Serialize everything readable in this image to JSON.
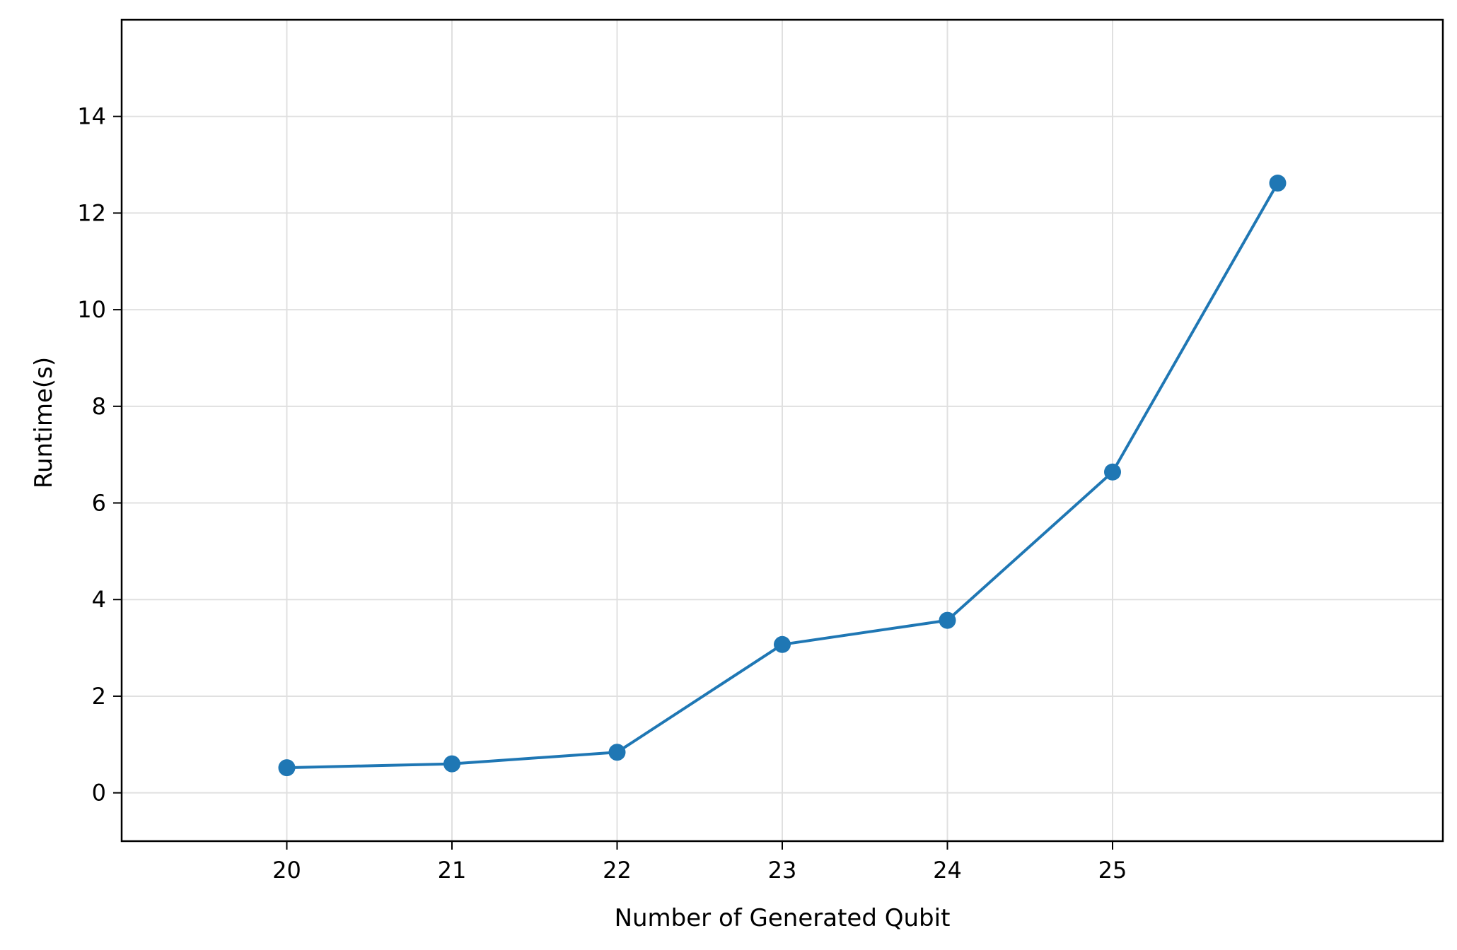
{
  "chart_data": {
    "type": "line",
    "title": "",
    "xlabel": "Number of Generated Qubit",
    "ylabel": "Runtime(s)",
    "x": [
      20,
      21,
      22,
      23,
      24,
      25,
      26
    ],
    "series": [
      {
        "values": [
          0.52,
          0.6,
          0.84,
          3.07,
          3.57,
          6.64,
          12.62
        ]
      }
    ],
    "xticks": [
      20,
      21,
      22,
      23,
      24,
      25
    ],
    "yticks": [
      0,
      2,
      4,
      6,
      8,
      10,
      12,
      14
    ],
    "xlim": [
      19,
      27
    ],
    "ylim": [
      -1,
      16
    ],
    "grid": true,
    "line_color": "#1f77b4",
    "grid_color": "#e0e0e0"
  }
}
